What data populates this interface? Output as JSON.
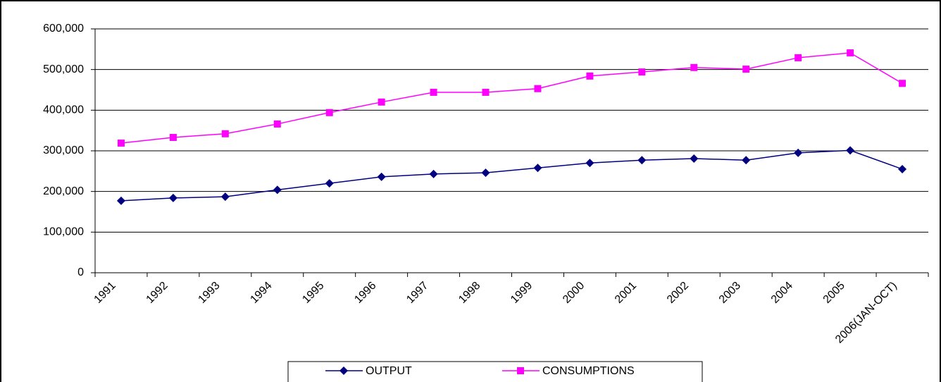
{
  "chart_data": {
    "type": "line",
    "categories": [
      "1991",
      "1992",
      "1993",
      "1994",
      "1995",
      "1996",
      "1997",
      "1998",
      "1999",
      "2000",
      "2001",
      "2002",
      "2003",
      "2004",
      "2005",
      "2006(JAN-OCT)"
    ],
    "series": [
      {
        "name": "OUTPUT",
        "color": "#000080",
        "marker": "diamond",
        "values": [
          177000,
          184000,
          187000,
          204000,
          220000,
          236000,
          243000,
          246000,
          258000,
          270000,
          277000,
          281000,
          277000,
          295000,
          301000,
          255000
        ]
      },
      {
        "name": "CONSUMPTIONS",
        "color": "#ff00ff",
        "marker": "square",
        "values": [
          319000,
          333000,
          342000,
          366000,
          394000,
          420000,
          444000,
          444000,
          453000,
          484000,
          494000,
          505000,
          501000,
          529000,
          541000,
          466000
        ]
      }
    ],
    "ylim": [
      0,
      600000
    ],
    "yticks": [
      0,
      {
        "value": 100000,
        "label": "100,000"
      },
      {
        "value": 200000,
        "label": "200,000"
      },
      {
        "value": 300000,
        "label": "300,000"
      },
      {
        "value": 400000,
        "label": "400,000"
      },
      {
        "value": 500000,
        "label": "500,000"
      },
      {
        "value": 600000,
        "label": "600,000"
      }
    ],
    "grid": true,
    "legend": "bottom"
  }
}
